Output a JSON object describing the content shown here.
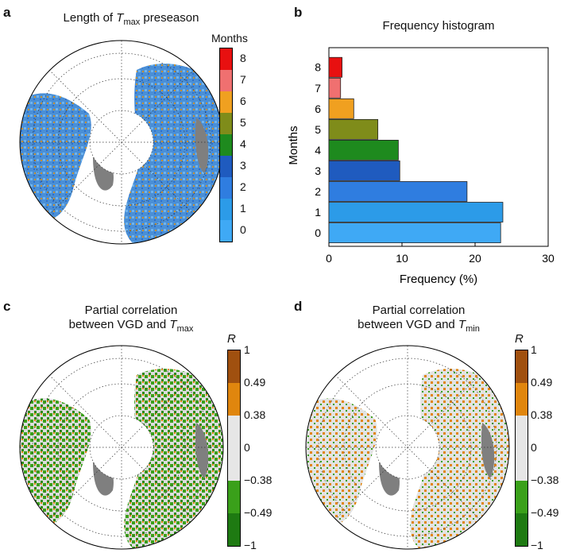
{
  "panels": {
    "a": {
      "letter": "a",
      "title_pre": "Length of ",
      "title_var": "T",
      "title_sub": "max",
      "title_post": " preseason",
      "colorbar_title": "Months",
      "colorbar_labels": [
        "8",
        "7",
        "6",
        "5",
        "4",
        "3",
        "2",
        "1",
        "0"
      ]
    },
    "b": {
      "letter": "b",
      "title": "Frequency histogram",
      "xlabel": "Frequency (%)",
      "ylabel": "Months"
    },
    "c": {
      "letter": "c",
      "title_line1": "Partial correlation",
      "title_line2_pre": "between VGD and ",
      "title_var": "T",
      "title_sub": "max",
      "colorbar_title": "R",
      "colorbar_labels": [
        "1",
        "0.49",
        "0.38",
        "0",
        "−0.38",
        "−0.49",
        "−1"
      ]
    },
    "d": {
      "letter": "d",
      "title_line1": "Partial correlation",
      "title_line2_pre": "between VGD and ",
      "title_var": "T",
      "title_sub": "min",
      "colorbar_title": "R",
      "colorbar_labels": [
        "1",
        "0.49",
        "0.38",
        "0",
        "−0.38",
        "−0.49",
        "−1"
      ]
    }
  },
  "colors": {
    "months": [
      "#3fa9f5",
      "#2c9be8",
      "#2f7de0",
      "#1f5bbf",
      "#1e8a1e",
      "#7f8c1a",
      "#f0a020",
      "#f07070",
      "#e81010"
    ],
    "corr": [
      "#a0500f",
      "#e0860e",
      "#e6e6e6",
      "#e6e6e6",
      "#3aa01a",
      "#1e7a12"
    ],
    "land_gray": "#7f7f7f"
  },
  "chart_data": [
    {
      "type": "bar",
      "orientation": "horizontal",
      "title": "Frequency histogram",
      "xlabel": "Frequency (%)",
      "ylabel": "Months",
      "categories": [
        "0",
        "1",
        "2",
        "3",
        "4",
        "5",
        "6",
        "7",
        "8"
      ],
      "values": [
        23.5,
        23.8,
        18.9,
        9.7,
        9.5,
        6.7,
        3.4,
        1.6,
        1.8
      ],
      "xlim": [
        0,
        30
      ],
      "xticks": [
        0,
        10,
        20,
        30
      ]
    }
  ]
}
